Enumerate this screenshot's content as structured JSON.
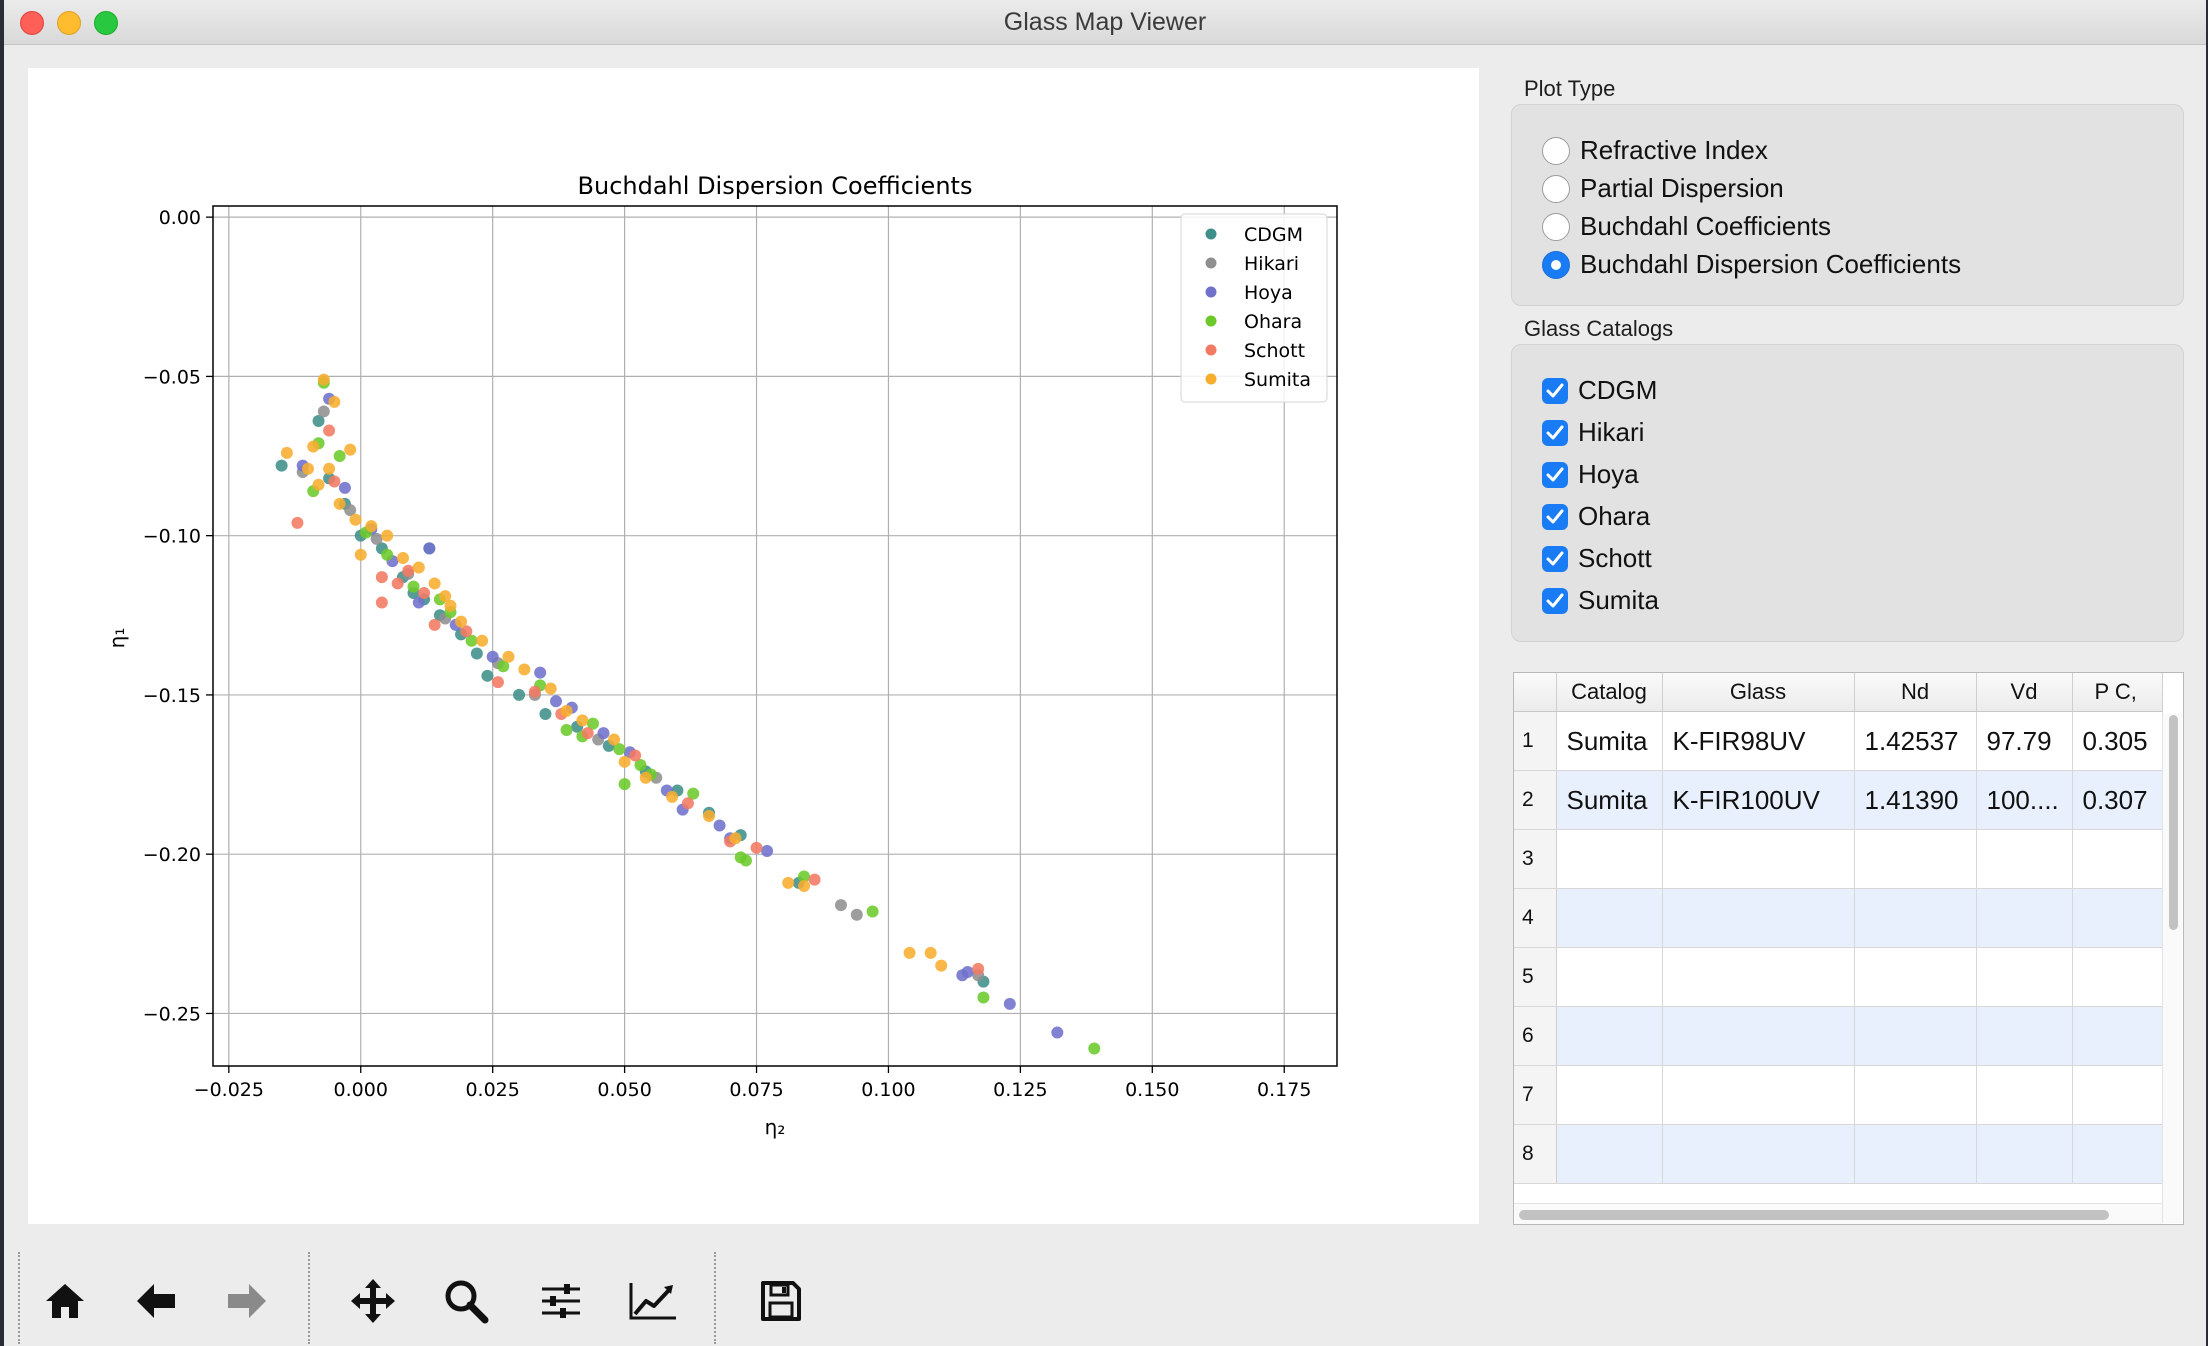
{
  "window": {
    "title": "Glass Map Viewer"
  },
  "plot_type": {
    "label": "Plot Type",
    "options": [
      "Refractive Index",
      "Partial Dispersion",
      "Buchdahl Coefficients",
      "Buchdahl Dispersion Coefficients"
    ],
    "selected": "Buchdahl Dispersion Coefficients"
  },
  "glass_catalogs": {
    "label": "Glass Catalogs",
    "items": [
      {
        "label": "CDGM",
        "checked": true
      },
      {
        "label": "Hikari",
        "checked": true
      },
      {
        "label": "Hoya",
        "checked": true
      },
      {
        "label": "Ohara",
        "checked": true
      },
      {
        "label": "Schott",
        "checked": true
      },
      {
        "label": "Sumita",
        "checked": true
      }
    ]
  },
  "table": {
    "headers": [
      "Catalog",
      "Glass",
      "Nd",
      "Vd",
      "P C,"
    ],
    "rows": [
      {
        "num": "1",
        "cells": [
          "Sumita",
          "K-FIR98UV",
          "1.42537",
          "97.79",
          "0.305"
        ]
      },
      {
        "num": "2",
        "cells": [
          "Sumita",
          "K-FIR100UV",
          "1.41390",
          "100....",
          "0.307"
        ]
      },
      {
        "num": "3",
        "cells": [
          "",
          "",
          "",
          "",
          ""
        ]
      },
      {
        "num": "4",
        "cells": [
          "",
          "",
          "",
          "",
          ""
        ]
      },
      {
        "num": "5",
        "cells": [
          "",
          "",
          "",
          "",
          ""
        ]
      },
      {
        "num": "6",
        "cells": [
          "",
          "",
          "",
          "",
          ""
        ]
      },
      {
        "num": "7",
        "cells": [
          "",
          "",
          "",
          "",
          ""
        ]
      },
      {
        "num": "8",
        "cells": [
          "",
          "",
          "",
          "",
          ""
        ]
      }
    ]
  },
  "toolbar": {
    "buttons": [
      "home-icon",
      "back-arrow-icon",
      "forward-arrow-icon",
      "pan-icon",
      "zoom-icon",
      "configure-subplots-icon",
      "edit-axis-icon",
      "save-icon"
    ]
  },
  "colors": {
    "accent": "#1a7cf5",
    "CDGM": "#3f8f8a",
    "Hikari": "#8f8f8f",
    "Hoya": "#6f72cc",
    "Ohara": "#6cc92a",
    "Schott": "#f27a62",
    "Sumita": "#f7ad2e"
  },
  "chart_data": {
    "type": "scatter",
    "title": "Buchdahl Dispersion Coefficients",
    "xlabel": "η₂",
    "ylabel": "η₁",
    "xlim": [
      -0.028,
      0.185
    ],
    "ylim": [
      -0.2665,
      0.0035
    ],
    "xticks": [
      -0.025,
      0.0,
      0.025,
      0.05,
      0.075,
      0.1,
      0.125,
      0.15,
      0.175
    ],
    "xtick_labels": [
      "−0.025",
      "0.000",
      "0.025",
      "0.050",
      "0.075",
      "0.100",
      "0.125",
      "0.150",
      "0.175"
    ],
    "yticks": [
      0.0,
      -0.05,
      -0.1,
      -0.15,
      -0.2,
      -0.25
    ],
    "ytick_labels": [
      "0.00",
      "−0.05",
      "−0.10",
      "−0.15",
      "−0.20",
      "−0.25"
    ],
    "grid": true,
    "legend_position": "upper right",
    "series": [
      {
        "name": "CDGM",
        "points": [
          [
            -0.015,
            -0.078
          ],
          [
            -0.008,
            -0.064
          ],
          [
            -0.006,
            -0.082
          ],
          [
            -0.003,
            -0.09
          ],
          [
            0.0,
            -0.1
          ],
          [
            0.004,
            -0.104
          ],
          [
            0.008,
            -0.113
          ],
          [
            0.012,
            -0.12
          ],
          [
            0.015,
            -0.125
          ],
          [
            0.019,
            -0.131
          ],
          [
            0.022,
            -0.137
          ],
          [
            0.024,
            -0.144
          ],
          [
            0.03,
            -0.15
          ],
          [
            0.035,
            -0.156
          ],
          [
            0.041,
            -0.16
          ],
          [
            0.047,
            -0.166
          ],
          [
            0.054,
            -0.174
          ],
          [
            0.06,
            -0.18
          ],
          [
            0.066,
            -0.187
          ],
          [
            0.072,
            -0.194
          ],
          [
            0.083,
            -0.209
          ],
          [
            0.118,
            -0.24
          ],
          [
            0.013,
            -0.104
          ],
          [
            0.01,
            -0.118
          ]
        ]
      },
      {
        "name": "Hikari",
        "points": [
          [
            -0.007,
            -0.061
          ],
          [
            -0.011,
            -0.08
          ],
          [
            -0.002,
            -0.092
          ],
          [
            0.003,
            -0.101
          ],
          [
            0.009,
            -0.112
          ],
          [
            0.016,
            -0.126
          ],
          [
            0.026,
            -0.14
          ],
          [
            0.033,
            -0.15
          ],
          [
            0.045,
            -0.164
          ],
          [
            0.056,
            -0.176
          ],
          [
            0.091,
            -0.216
          ],
          [
            0.094,
            -0.219
          ],
          [
            0.117,
            -0.238
          ]
        ]
      },
      {
        "name": "Hoya",
        "points": [
          [
            -0.006,
            -0.057
          ],
          [
            -0.011,
            -0.078
          ],
          [
            -0.003,
            -0.085
          ],
          [
            0.002,
            -0.098
          ],
          [
            0.006,
            -0.108
          ],
          [
            0.013,
            -0.104
          ],
          [
            0.011,
            -0.121
          ],
          [
            0.018,
            -0.128
          ],
          [
            0.025,
            -0.138
          ],
          [
            0.034,
            -0.143
          ],
          [
            0.04,
            -0.154
          ],
          [
            0.046,
            -0.162
          ],
          [
            0.051,
            -0.168
          ],
          [
            0.058,
            -0.18
          ],
          [
            0.061,
            -0.186
          ],
          [
            0.068,
            -0.191
          ],
          [
            0.077,
            -0.199
          ],
          [
            0.114,
            -0.238
          ],
          [
            0.123,
            -0.247
          ],
          [
            0.132,
            -0.256
          ],
          [
            0.037,
            -0.152
          ],
          [
            0.07,
            -0.195
          ],
          [
            0.115,
            -0.237
          ]
        ]
      },
      {
        "name": "Ohara",
        "points": [
          [
            -0.007,
            -0.052
          ],
          [
            -0.008,
            -0.071
          ],
          [
            -0.004,
            -0.075
          ],
          [
            -0.009,
            -0.086
          ],
          [
            0.001,
            -0.099
          ],
          [
            0.005,
            -0.106
          ],
          [
            0.01,
            -0.116
          ],
          [
            0.017,
            -0.124
          ],
          [
            0.021,
            -0.133
          ],
          [
            0.027,
            -0.141
          ],
          [
            0.034,
            -0.147
          ],
          [
            0.039,
            -0.161
          ],
          [
            0.044,
            -0.159
          ],
          [
            0.049,
            -0.167
          ],
          [
            0.05,
            -0.178
          ],
          [
            0.055,
            -0.175
          ],
          [
            0.063,
            -0.181
          ],
          [
            0.072,
            -0.201
          ],
          [
            0.073,
            -0.202
          ],
          [
            0.084,
            -0.207
          ],
          [
            0.097,
            -0.218
          ],
          [
            0.118,
            -0.245
          ],
          [
            0.139,
            -0.261
          ],
          [
            0.015,
            -0.12
          ],
          [
            0.042,
            -0.163
          ],
          [
            0.053,
            -0.172
          ]
        ]
      },
      {
        "name": "Schott",
        "points": [
          [
            -0.006,
            -0.067
          ],
          [
            -0.012,
            -0.096
          ],
          [
            -0.005,
            -0.083
          ],
          [
            0.004,
            -0.113
          ],
          [
            0.007,
            -0.115
          ],
          [
            0.004,
            -0.121
          ],
          [
            0.012,
            -0.118
          ],
          [
            0.014,
            -0.128
          ],
          [
            0.02,
            -0.13
          ],
          [
            0.026,
            -0.146
          ],
          [
            0.038,
            -0.156
          ],
          [
            0.043,
            -0.162
          ],
          [
            0.052,
            -0.169
          ],
          [
            0.062,
            -0.184
          ],
          [
            0.07,
            -0.196
          ],
          [
            0.075,
            -0.198
          ],
          [
            0.086,
            -0.208
          ],
          [
            0.117,
            -0.236
          ],
          [
            0.009,
            -0.111
          ],
          [
            0.033,
            -0.149
          ]
        ]
      },
      {
        "name": "Sumita",
        "points": [
          [
            -0.007,
            -0.051
          ],
          [
            -0.005,
            -0.058
          ],
          [
            -0.014,
            -0.074
          ],
          [
            -0.009,
            -0.072
          ],
          [
            -0.006,
            -0.079
          ],
          [
            -0.002,
            -0.073
          ],
          [
            -0.008,
            -0.084
          ],
          [
            -0.004,
            -0.09
          ],
          [
            -0.001,
            -0.095
          ],
          [
            0.002,
            -0.097
          ],
          [
            0.005,
            -0.1
          ],
          [
            0.008,
            -0.107
          ],
          [
            0.011,
            -0.11
          ],
          [
            0.014,
            -0.115
          ],
          [
            0.017,
            -0.122
          ],
          [
            0.019,
            -0.127
          ],
          [
            0.023,
            -0.133
          ],
          [
            0.028,
            -0.138
          ],
          [
            0.031,
            -0.142
          ],
          [
            0.036,
            -0.148
          ],
          [
            0.039,
            -0.155
          ],
          [
            0.042,
            -0.158
          ],
          [
            0.048,
            -0.164
          ],
          [
            0.05,
            -0.171
          ],
          [
            0.054,
            -0.176
          ],
          [
            0.059,
            -0.182
          ],
          [
            0.066,
            -0.188
          ],
          [
            0.071,
            -0.195
          ],
          [
            0.081,
            -0.209
          ],
          [
            0.084,
            -0.21
          ],
          [
            0.104,
            -0.231
          ],
          [
            0.108,
            -0.231
          ],
          [
            0.11,
            -0.235
          ],
          [
            -0.01,
            -0.079
          ],
          [
            0.0,
            -0.106
          ],
          [
            0.016,
            -0.119
          ]
        ]
      }
    ]
  }
}
